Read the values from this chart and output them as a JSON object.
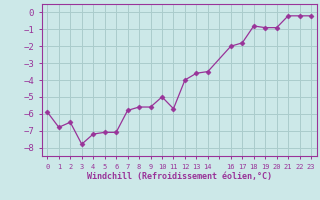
{
  "x": [
    0,
    1,
    2,
    3,
    4,
    5,
    6,
    7,
    8,
    9,
    10,
    11,
    12,
    13,
    14,
    16,
    17,
    18,
    19,
    20,
    21,
    22,
    23
  ],
  "y": [
    -5.9,
    -6.8,
    -6.5,
    -7.8,
    -7.2,
    -7.1,
    -7.1,
    -5.8,
    -5.6,
    -5.6,
    -5.0,
    -5.7,
    -4.0,
    -3.6,
    -3.5,
    -2.0,
    -1.8,
    -0.8,
    -0.9,
    -0.9,
    -0.2,
    -0.2,
    -0.2
  ],
  "line_color": "#993399",
  "marker": "D",
  "marker_size": 2.5,
  "bg_color": "#cce8e8",
  "grid_color": "#aacccc",
  "xlabel": "Windchill (Refroidissement éolien,°C)",
  "xlabel_color": "#993399",
  "tick_color": "#993399",
  "spine_color": "#993399",
  "ylim": [
    -8.5,
    0.5
  ],
  "xlim": [
    -0.5,
    23.5
  ],
  "yticks": [
    0,
    -1,
    -2,
    -3,
    -4,
    -5,
    -6,
    -7,
    -8
  ],
  "xtick_labels": [
    "0",
    "1",
    "2",
    "3",
    "4",
    "5",
    "6",
    "7",
    "8",
    "9",
    "10",
    "11",
    "12",
    "13",
    "14",
    "",
    "16",
    "17",
    "18",
    "19",
    "20",
    "21",
    "22",
    "23"
  ],
  "xtick_positions": [
    0,
    1,
    2,
    3,
    4,
    5,
    6,
    7,
    8,
    9,
    10,
    11,
    12,
    13,
    14,
    15,
    16,
    17,
    18,
    19,
    20,
    21,
    22,
    23
  ]
}
